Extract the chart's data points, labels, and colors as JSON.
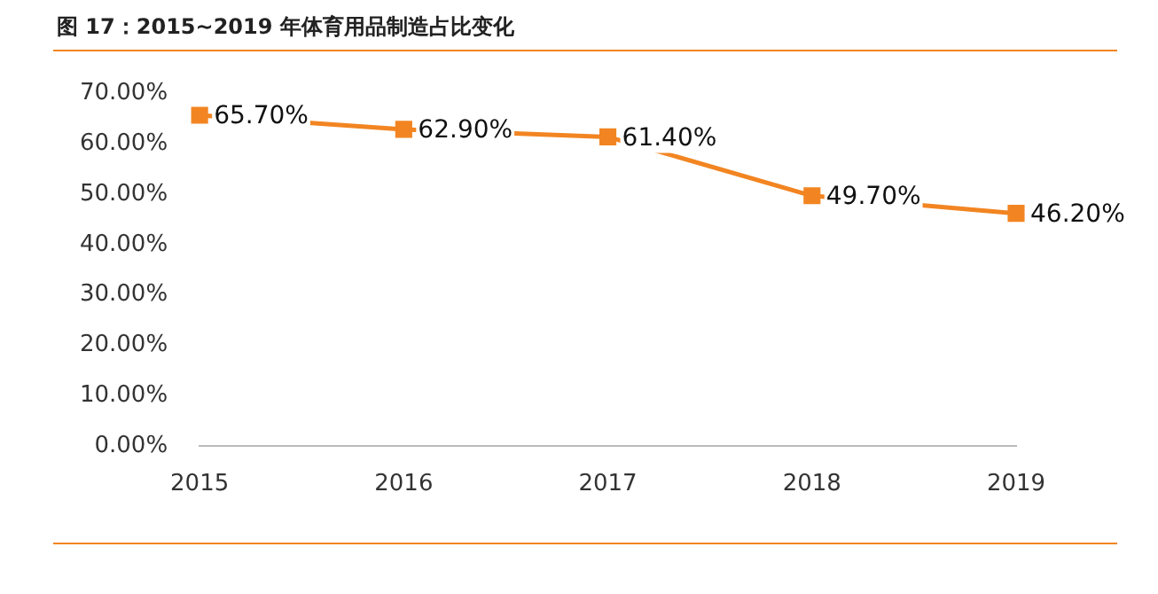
{
  "chart_data": {
    "type": "line",
    "title": "图 17：2015~2019 年体育用品制造占比变化",
    "categories": [
      "2015",
      "2016",
      "2017",
      "2018",
      "2019"
    ],
    "series": [
      {
        "color": "#f28522",
        "values": [
          65.7,
          62.9,
          61.4,
          49.7,
          46.2
        ],
        "value_labels": [
          "65.70%",
          "62.90%",
          "61.40%",
          "49.70%",
          "46.20%"
        ]
      }
    ],
    "ylim": [
      0,
      70
    ],
    "yticks": [
      {
        "value": 0,
        "label": "0.00%"
      },
      {
        "value": 10,
        "label": "10.00%"
      },
      {
        "value": 20,
        "label": "20.00%"
      },
      {
        "value": 30,
        "label": "30.00%"
      },
      {
        "value": 40,
        "label": "40.00%"
      },
      {
        "value": 50,
        "label": "50.00%"
      },
      {
        "value": 60,
        "label": "60.00%"
      },
      {
        "value": 70,
        "label": "70.00%"
      }
    ],
    "grid": false,
    "legend": false,
    "marker": "square",
    "line_style": "solid"
  }
}
